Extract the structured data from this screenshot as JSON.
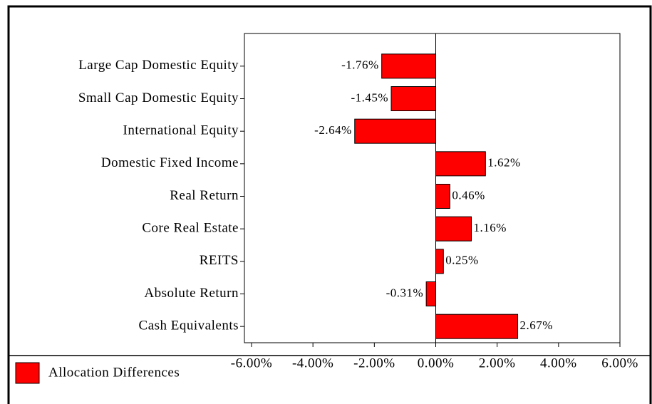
{
  "chart_data": {
    "type": "barh",
    "categories": [
      "Large Cap Domestic Equity",
      "Small Cap Domestic Equity",
      "International Equity",
      "Domestic Fixed Income",
      "Real Return",
      "Core Real Estate",
      "REITS",
      "Absolute Return",
      "Cash Equivalents"
    ],
    "series": [
      {
        "name": "Allocation Differences",
        "color": "#ff0000",
        "values": [
          -1.76,
          -1.45,
          -2.64,
          1.62,
          0.46,
          1.16,
          0.25,
          -0.31,
          2.67
        ],
        "value_labels": [
          "-1.76%",
          "-1.45%",
          "-2.64%",
          "1.62%",
          "0.46%",
          "1.16%",
          "0.25%",
          "-0.31%",
          "2.67%"
        ]
      }
    ],
    "xlim": [
      -6,
      6
    ],
    "xticks": [
      {
        "value": -6,
        "label": "-6.00%"
      },
      {
        "value": -4,
        "label": "-4.00%"
      },
      {
        "value": -2,
        "label": "-2.00%"
      },
      {
        "value": 0,
        "label": "0.00%"
      },
      {
        "value": 2,
        "label": "2.00%"
      },
      {
        "value": 4,
        "label": "4.00%"
      },
      {
        "value": 6,
        "label": "6.00%"
      }
    ],
    "legend": "bottom-left"
  }
}
